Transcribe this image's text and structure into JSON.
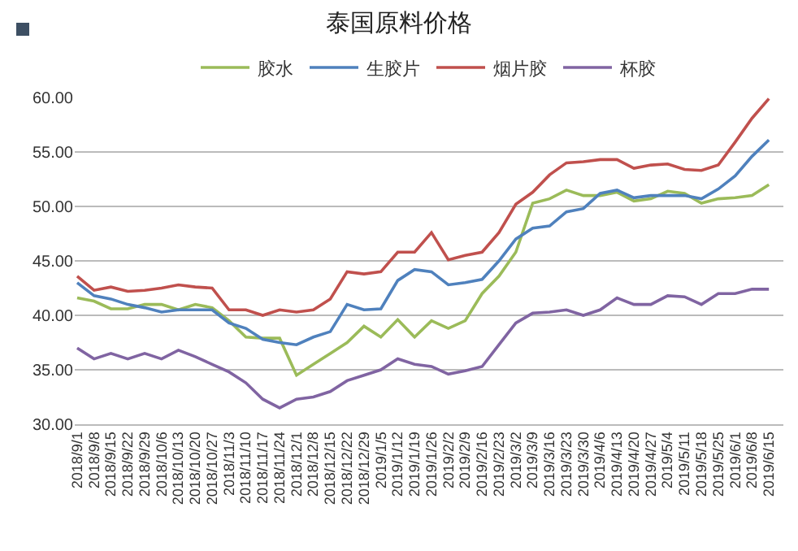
{
  "chart_data": {
    "type": "line",
    "title": "泰国原料价格",
    "x": [
      "2018-09-01",
      "2018-09-08",
      "2018-09-15",
      "2018-09-22",
      "2018-09-29",
      "2018-10-06",
      "2018-10-13",
      "2018-10-20",
      "2018-10-27",
      "2018-11-03",
      "2018-11-10",
      "2018-11-17",
      "2018-11-24",
      "2018-12-01",
      "2018-12-08",
      "2018-12-15",
      "2018-12-22",
      "2018-12-29",
      "2019-01-05",
      "2019-01-12",
      "2019-01-19",
      "2019-01-26",
      "2019-02-02",
      "2019-02-09",
      "2019-02-16",
      "2019-02-23",
      "2019-03-02",
      "2019-03-09",
      "2019-03-16",
      "2019-03-23",
      "2019-03-30",
      "2019-04-06",
      "2019-04-13",
      "2019-04-20",
      "2019-04-27",
      "2019-05-04",
      "2019-05-11",
      "2019-05-18",
      "2019-05-25",
      "2019-06-01",
      "2019-06-08",
      "2019-06-15"
    ],
    "series": [
      {
        "name": "胶水",
        "color": "#9bbb59",
        "values": [
          41.6,
          41.3,
          40.6,
          40.6,
          41.0,
          41.0,
          40.5,
          41.0,
          40.7,
          39.5,
          38.0,
          37.9,
          37.9,
          34.5,
          35.5,
          36.5,
          37.5,
          39.0,
          38.0,
          39.6,
          38.0,
          39.5,
          38.8,
          39.5,
          42.0,
          43.6,
          45.8,
          50.3,
          50.7,
          51.5,
          51.0,
          51.0,
          51.3,
          50.5,
          50.7,
          51.4,
          51.2,
          50.3,
          50.7,
          50.8,
          51.0,
          52.0
        ]
      },
      {
        "name": "生胶片",
        "color": "#4f81bd",
        "values": [
          43.0,
          41.8,
          41.5,
          41.0,
          40.7,
          40.3,
          40.5,
          40.5,
          40.5,
          39.3,
          38.8,
          37.8,
          37.5,
          37.3,
          38.0,
          38.5,
          41.0,
          40.5,
          40.6,
          43.2,
          44.2,
          44.0,
          42.8,
          43.0,
          43.3,
          45.0,
          47.0,
          48.0,
          48.2,
          49.5,
          49.8,
          51.2,
          51.5,
          50.8,
          51.0,
          51.0,
          51.0,
          50.7,
          51.6,
          52.8,
          54.6,
          56.1
        ]
      },
      {
        "name": "烟片胶",
        "color": "#c0504d",
        "values": [
          43.6,
          42.3,
          42.6,
          42.2,
          42.3,
          42.5,
          42.8,
          42.6,
          42.5,
          40.5,
          40.5,
          40.0,
          40.5,
          40.3,
          40.5,
          41.5,
          44.0,
          43.8,
          44.0,
          45.8,
          45.8,
          47.6,
          45.1,
          45.5,
          45.8,
          47.6,
          50.2,
          51.3,
          52.9,
          54.0,
          54.1,
          54.3,
          54.3,
          53.5,
          53.8,
          53.9,
          53.4,
          53.3,
          53.8,
          55.9,
          58.1,
          59.9
        ]
      },
      {
        "name": "杯胶",
        "color": "#8064a2",
        "values": [
          37.0,
          36.0,
          36.5,
          36.0,
          36.5,
          36.0,
          36.8,
          36.2,
          35.5,
          34.8,
          33.8,
          32.3,
          31.5,
          32.3,
          32.5,
          33.0,
          34.0,
          34.5,
          35.0,
          36.0,
          35.5,
          35.3,
          34.6,
          34.9,
          35.3,
          37.3,
          39.3,
          40.2,
          40.3,
          40.5,
          40.0,
          40.5,
          41.6,
          41.0,
          41.0,
          41.8,
          41.7,
          41.0,
          42.0,
          42.0,
          42.4,
          42.4
        ]
      }
    ],
    "xlim": [
      "2018-08-31",
      "2019-06-21"
    ],
    "xticks": [
      {
        "value": "2018-09-01",
        "label": "2018/9/1"
      },
      {
        "value": "2018-09-08",
        "label": "2018/9/8"
      },
      {
        "value": "2018-09-15",
        "label": "2018/9/15"
      },
      {
        "value": "2018-09-22",
        "label": "2018/9/22"
      },
      {
        "value": "2018-09-29",
        "label": "2018/9/29"
      },
      {
        "value": "2018-10-06",
        "label": "2018/10/6"
      },
      {
        "value": "2018-10-13",
        "label": "2018/10/13"
      },
      {
        "value": "2018-10-20",
        "label": "2018/10/20"
      },
      {
        "value": "2018-10-27",
        "label": "2018/10/27"
      },
      {
        "value": "2018-11-03",
        "label": "2018/11/3"
      },
      {
        "value": "2018-11-10",
        "label": "2018/11/10"
      },
      {
        "value": "2018-11-17",
        "label": "2018/11/17"
      },
      {
        "value": "2018-11-24",
        "label": "2018/11/24"
      },
      {
        "value": "2018-12-01",
        "label": "2018/12/1"
      },
      {
        "value": "2018-12-08",
        "label": "2018/12/8"
      },
      {
        "value": "2018-12-15",
        "label": "2018/12/15"
      },
      {
        "value": "2018-12-22",
        "label": "2018/12/22"
      },
      {
        "value": "2018-12-29",
        "label": "2018/12/29"
      },
      {
        "value": "2019-01-05",
        "label": "2019/1/5"
      },
      {
        "value": "2019-01-12",
        "label": "2019/1/12"
      },
      {
        "value": "2019-01-19",
        "label": "2019/1/19"
      },
      {
        "value": "2019-01-26",
        "label": "2019/1/26"
      },
      {
        "value": "2019-02-02",
        "label": "2019/2/2"
      },
      {
        "value": "2019-02-09",
        "label": "2019/2/9"
      },
      {
        "value": "2019-02-16",
        "label": "2019/2/16"
      },
      {
        "value": "2019-02-23",
        "label": "2019/2/23"
      },
      {
        "value": "2019-03-02",
        "label": "2019/3/2"
      },
      {
        "value": "2019-03-09",
        "label": "2019/3/9"
      },
      {
        "value": "2019-03-16",
        "label": "2019/3/16"
      },
      {
        "value": "2019-03-23",
        "label": "2019/3/23"
      },
      {
        "value": "2019-03-30",
        "label": "2019/3/30"
      },
      {
        "value": "2019-04-06",
        "label": "2019/4/6"
      },
      {
        "value": "2019-04-13",
        "label": "2019/4/13"
      },
      {
        "value": "2019-04-20",
        "label": "2019/4/20"
      },
      {
        "value": "2019-04-27",
        "label": "2019/4/27"
      },
      {
        "value": "2019-05-04",
        "label": "2019/5/4"
      },
      {
        "value": "2019-05-11",
        "label": "2019/5/11"
      },
      {
        "value": "2019-05-18",
        "label": "2019/5/18"
      },
      {
        "value": "2019-05-25",
        "label": "2019/5/25"
      },
      {
        "value": "2019-06-01",
        "label": "2019/6/1"
      },
      {
        "value": "2019-06-08",
        "label": "2019/6/8"
      },
      {
        "value": "2019-06-15",
        "label": "2019/6/15"
      }
    ],
    "ylim": [
      30,
      60
    ],
    "yticks": [
      {
        "value": 30,
        "label": "30.00"
      },
      {
        "value": 35,
        "label": "35.00"
      },
      {
        "value": 40,
        "label": "40.00"
      },
      {
        "value": 45,
        "label": "45.00"
      },
      {
        "value": 50,
        "label": "50.00"
      },
      {
        "value": 55,
        "label": "55.00"
      },
      {
        "value": 60,
        "label": "60.00"
      }
    ],
    "grid": "y",
    "legend": "top",
    "marker": "none",
    "line_style": "solid"
  }
}
